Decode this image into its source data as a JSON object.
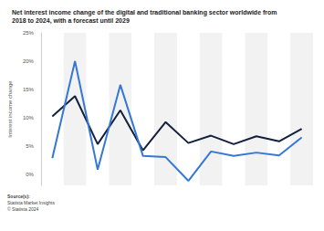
{
  "chart_data": {
    "type": "line",
    "title": "Net interest income change of the digital and traditional banking sector worldwide from 2018 to 2024, with a forecast until 2029",
    "y_label": "Interest income change",
    "source_label": "Source(s):",
    "source": "Statista Market Insights",
    "copyright": "© Statista 2024",
    "categories": [
      null,
      null,
      null,
      null,
      null,
      null,
      null,
      null,
      null,
      null,
      null,
      null
    ],
    "series": [
      {
        "color": "#14213d",
        "line_style": "solid",
        "marker": "none",
        "values": [
          10.2,
          13.8,
          5.3,
          11.3,
          4.2,
          9.2,
          5.5,
          6.8,
          5.3,
          6.7,
          5.8,
          8.0
        ]
      },
      {
        "color": "#3478d4",
        "line_style": "solid",
        "marker": "none",
        "values": [
          2.8,
          20.0,
          0.8,
          15.8,
          3.2,
          3.0,
          -1.2,
          4.0,
          3.2,
          3.8,
          3.3,
          6.5
        ]
      }
    ],
    "ylim": [
      -2,
      25
    ],
    "yticks": [
      {
        "value": 0,
        "label": "0%"
      },
      {
        "value": 5,
        "label": "5%"
      },
      {
        "value": 10,
        "label": "10%"
      },
      {
        "value": 15,
        "label": "15%"
      },
      {
        "value": 20,
        "label": "20%"
      },
      {
        "value": 25,
        "label": "25%"
      }
    ],
    "grid": true,
    "tick_labels": "y"
  }
}
